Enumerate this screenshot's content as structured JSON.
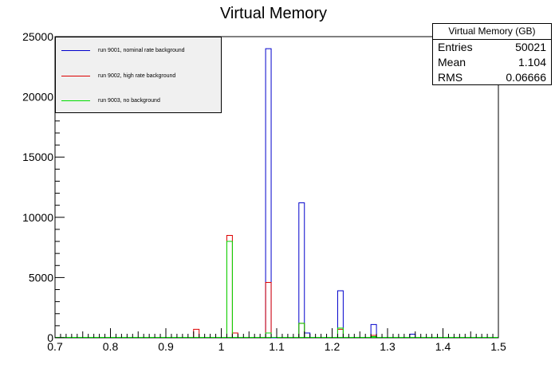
{
  "chart_data": {
    "type": "bar",
    "title": "Virtual Memory",
    "xlabel": "",
    "ylabel": "",
    "xlim": [
      0.7,
      1.5
    ],
    "ylim": [
      0,
      25000
    ],
    "bin_width": 0.01,
    "x_ticks": [
      "0.7",
      "0.8",
      "0.9",
      "1",
      "1.1",
      "1.2",
      "1.3",
      "1.4",
      "1.5"
    ],
    "y_ticks": [
      "0",
      "5000",
      "10000",
      "15000",
      "20000",
      "25000"
    ],
    "grid": false,
    "legend_position": "top-left",
    "series": [
      {
        "name": "run 9001, nominal rate background",
        "color": "#0000cc",
        "bins": [
          {
            "x": 1.08,
            "value": 24000
          },
          {
            "x": 1.09,
            "value": 0
          },
          {
            "x": 1.14,
            "value": 11200
          },
          {
            "x": 1.15,
            "value": 400
          },
          {
            "x": 1.21,
            "value": 3900
          },
          {
            "x": 1.27,
            "value": 1100
          },
          {
            "x": 1.34,
            "value": 300
          }
        ]
      },
      {
        "name": "run 9002, high rate background",
        "color": "#dd0000",
        "bins": [
          {
            "x": 0.95,
            "value": 700
          },
          {
            "x": 1.01,
            "value": 8500
          },
          {
            "x": 1.02,
            "value": 400
          },
          {
            "x": 1.08,
            "value": 4600
          },
          {
            "x": 1.14,
            "value": 1200
          },
          {
            "x": 1.21,
            "value": 700
          },
          {
            "x": 1.27,
            "value": 200
          }
        ]
      },
      {
        "name": "run 9003, no background",
        "color": "#00dd00",
        "bins": [
          {
            "x": 1.01,
            "value": 8000
          },
          {
            "x": 1.08,
            "value": 400
          },
          {
            "x": 1.14,
            "value": 1200
          },
          {
            "x": 1.21,
            "value": 800
          },
          {
            "x": 1.27,
            "value": 100
          }
        ]
      }
    ]
  },
  "stats": {
    "title": "Virtual Memory (GB)",
    "rows": [
      {
        "label": "Entries",
        "value": "50021"
      },
      {
        "label": "Mean",
        "value": "1.104"
      },
      {
        "label": "RMS",
        "value": "0.06666"
      }
    ]
  }
}
